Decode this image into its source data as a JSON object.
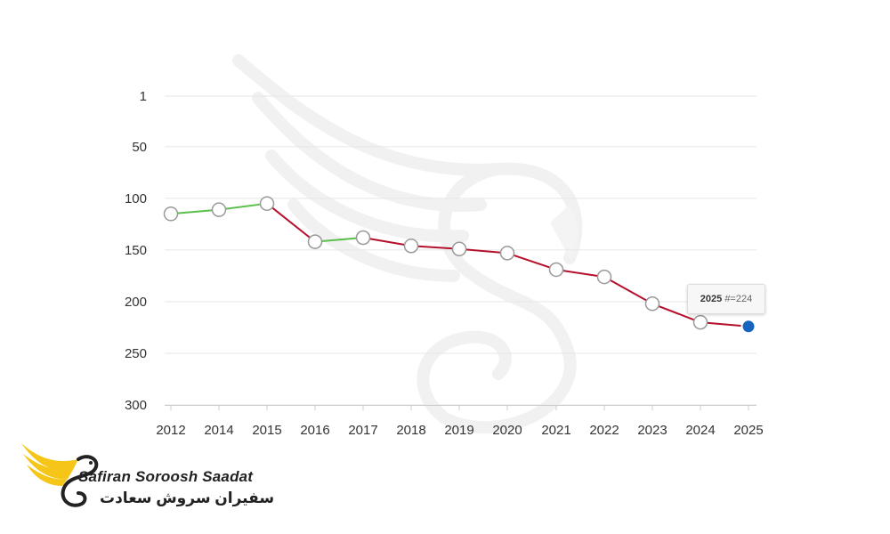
{
  "chart_data": {
    "type": "line",
    "title": "",
    "xlabel": "",
    "ylabel": "",
    "y_reversed": true,
    "ylim": [
      1,
      300
    ],
    "y_ticks": [
      "1",
      "50",
      "100",
      "150",
      "200",
      "250",
      "300"
    ],
    "categories": [
      "2012",
      "2014",
      "2015",
      "2016",
      "2017",
      "2018",
      "2019",
      "2020",
      "2021",
      "2022",
      "2023",
      "2024",
      "2025"
    ],
    "values": [
      115,
      111,
      105,
      142,
      138,
      146,
      149,
      153,
      169,
      176,
      202,
      220,
      224
    ],
    "line_colors": {
      "improving": "#5cbf4d",
      "declining": "#b5102b"
    },
    "grid": true,
    "legend": "none",
    "tooltip": {
      "year": "2025",
      "label": "#=224"
    }
  },
  "brand": {
    "name_en": "Safiran Soroosh Saadat",
    "name_fa": "سفیران سروش سعادت",
    "accent": "#f5c518"
  }
}
